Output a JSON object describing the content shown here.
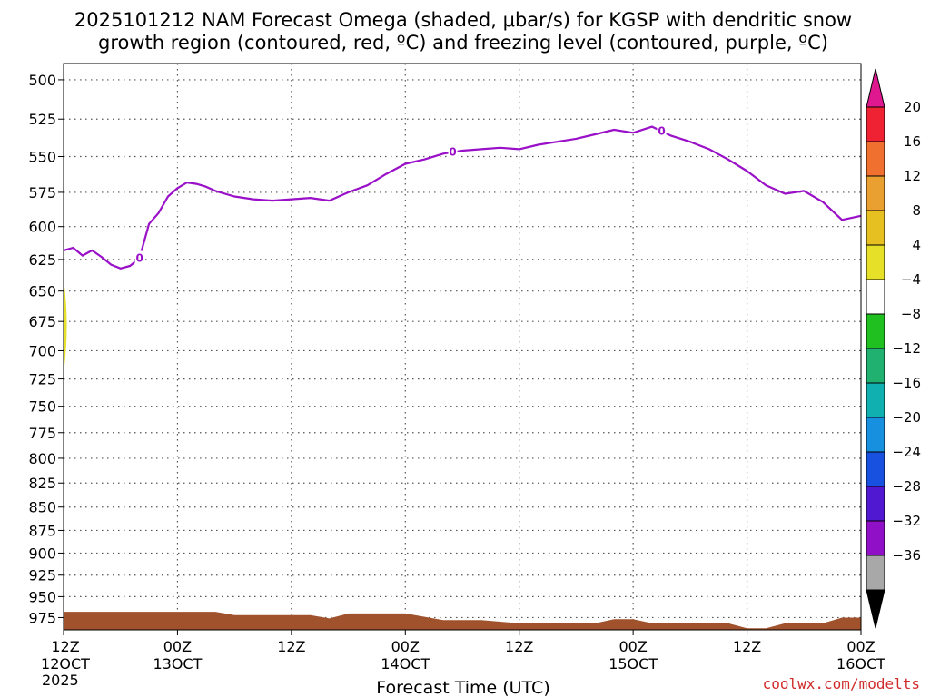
{
  "title": {
    "line1": "2025101212 NAM Forecast Omega (shaded, μbar/s) for KGSP with dendritic snow",
    "line2": "growth region (contoured, red, ºC) and freezing level (contoured, purple, ºC)"
  },
  "watermark": "coolwx.com/modelts",
  "chart_data": {
    "type": "area",
    "title": "2025101212 NAM Forecast Omega (shaded, μbar/s) for KGSP with dendritic snow growth region (contoured, red, ºC) and freezing level (contoured, purple, ºC)",
    "xlabel": "Forecast Time (UTC)",
    "ylabel": "",
    "x_unit": "forecast hour",
    "xlim": [
      0,
      84
    ],
    "ylim": [
      490,
      990
    ],
    "y_scale": "log-pressure, inverted",
    "grid": true,
    "y_ticks": [
      "500",
      "525",
      "550",
      "575",
      "600",
      "625",
      "650",
      "675",
      "700",
      "725",
      "750",
      "775",
      "800",
      "825",
      "850",
      "875",
      "900",
      "925",
      "950",
      "975"
    ],
    "x_ticks": [
      {
        "hour": 0,
        "line1": "12Z",
        "line2": "12OCT",
        "line3": "2025"
      },
      {
        "hour": 12,
        "line1": "00Z",
        "line2": "13OCT",
        "line3": ""
      },
      {
        "hour": 24,
        "line1": "12Z",
        "line2": "",
        "line3": ""
      },
      {
        "hour": 36,
        "line1": "00Z",
        "line2": "14OCT",
        "line3": ""
      },
      {
        "hour": 48,
        "line1": "12Z",
        "line2": "",
        "line3": ""
      },
      {
        "hour": 60,
        "line1": "00Z",
        "line2": "15OCT",
        "line3": ""
      },
      {
        "hour": 72,
        "line1": "12Z",
        "line2": "",
        "line3": ""
      },
      {
        "hour": 84,
        "line1": "00Z",
        "line2": "16OCT",
        "line3": ""
      }
    ],
    "freezing_level": {
      "color": "#9a10c8",
      "contour_label": "0",
      "label_hours": [
        8,
        41,
        63
      ],
      "x": [
        0,
        1,
        2,
        3,
        4,
        5,
        6,
        7,
        8,
        9,
        10,
        11,
        12,
        13,
        14,
        15,
        16,
        18,
        20,
        22,
        24,
        26,
        28,
        30,
        32,
        34,
        36,
        38,
        40,
        42,
        44,
        46,
        48,
        50,
        52,
        54,
        56,
        58,
        60,
        62,
        64,
        66,
        68,
        70,
        72,
        74,
        76,
        78,
        80,
        82,
        84
      ],
      "y": [
        618,
        616,
        622,
        618,
        623,
        629,
        632,
        630,
        624,
        598,
        590,
        578,
        572,
        568,
        569,
        571,
        574,
        578,
        580,
        581,
        580,
        579,
        581,
        575,
        570,
        562,
        555,
        552,
        548,
        546,
        545,
        544,
        545,
        542,
        540,
        538,
        535,
        532,
        534,
        530,
        536,
        540,
        545,
        552,
        560,
        570,
        576,
        574,
        582,
        595,
        592
      ]
    },
    "omega_shading": [
      {
        "value_range": [
          4,
          8
        ],
        "color": "#e6e028",
        "hour_range": [
          0,
          0.2
        ],
        "pressure_range": [
          640,
          720
        ]
      }
    ],
    "terrain_color": "#a0522d",
    "terrain": {
      "x": [
        0,
        4,
        8,
        12,
        16,
        18,
        22,
        26,
        28,
        30,
        32,
        36,
        40,
        44,
        46,
        48,
        52,
        56,
        58,
        60,
        62,
        66,
        70,
        72,
        74,
        76,
        80,
        82,
        84
      ],
      "y": [
        968,
        968,
        968,
        968,
        968,
        972,
        972,
        972,
        976,
        970,
        970,
        970,
        978,
        978,
        980,
        982,
        982,
        982,
        977,
        977,
        982,
        982,
        982,
        988,
        988,
        982,
        982,
        975,
        975
      ]
    },
    "colorbar": {
      "labels": [
        "20",
        "16",
        "12",
        "8",
        "4",
        "−4",
        "−8",
        "−12",
        "−16",
        "−20",
        "−24",
        "−28",
        "−32",
        "−36"
      ],
      "colors": [
        "#ee2233",
        "#f07030",
        "#eaa030",
        "#e6c020",
        "#e6e028",
        "#ffffff",
        "#20c020",
        "#20b070",
        "#10b0b0",
        "#1890e0",
        "#1850e0",
        "#5018d0",
        "#9010c8",
        "#a8a8a8"
      ],
      "top_arrow_color": "#e01890",
      "bottom_arrow_color": "#000000"
    }
  }
}
